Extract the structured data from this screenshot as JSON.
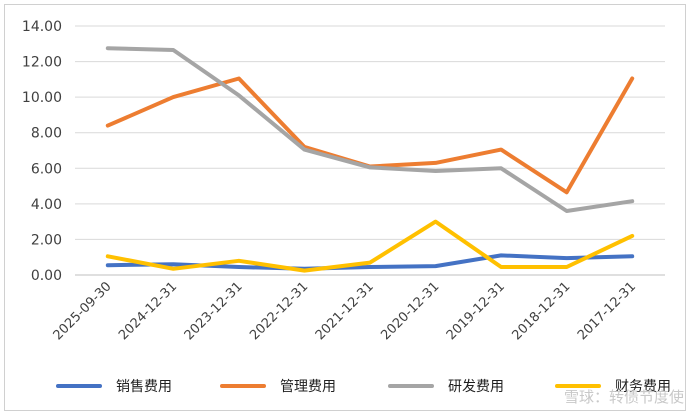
{
  "chart_data": {
    "type": "line",
    "title": "",
    "xlabel": "",
    "ylabel": "",
    "ylim": [
      0,
      14
    ],
    "yticks": [
      "0.00",
      "2.00",
      "4.00",
      "6.00",
      "8.00",
      "10.00",
      "12.00",
      "14.00"
    ],
    "grid": "horizontal",
    "legend_position": "bottom",
    "categories": [
      "2025-09-30",
      "2024-12-31",
      "2023-12-31",
      "2022-12-31",
      "2021-12-31",
      "2020-12-31",
      "2019-12-31",
      "2018-12-31",
      "2017-12-31"
    ],
    "series": [
      {
        "name": "销售费用",
        "color": "#4472C4",
        "values": [
          0.55,
          0.6,
          0.45,
          0.35,
          0.45,
          0.5,
          1.1,
          0.95,
          1.05
        ]
      },
      {
        "name": "管理费用",
        "color": "#ED7D31",
        "values": [
          8.4,
          10.0,
          11.05,
          7.2,
          6.1,
          6.3,
          7.05,
          4.65,
          11.05
        ]
      },
      {
        "name": "研发费用",
        "color": "#A5A5A5",
        "values": [
          12.75,
          12.65,
          10.1,
          7.05,
          6.05,
          5.85,
          6.0,
          3.6,
          4.15
        ]
      },
      {
        "name": "财务费用",
        "color": "#FFC000",
        "values": [
          1.05,
          0.35,
          0.8,
          0.25,
          0.7,
          3.0,
          0.45,
          0.45,
          2.2
        ]
      }
    ]
  },
  "watermark": "雪球：转债节度使"
}
